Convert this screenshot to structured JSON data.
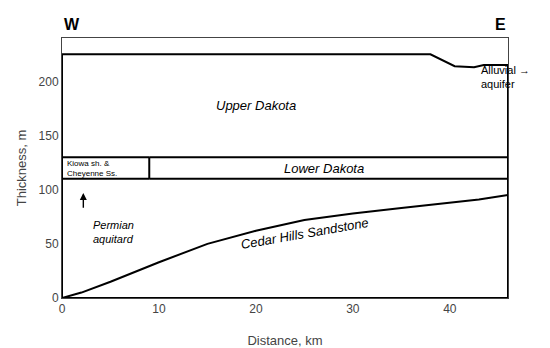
{
  "chart_data": {
    "type": "line",
    "xlabel": "Distance, km",
    "ylabel": "Thickness, m",
    "xlim": [
      0,
      46
    ],
    "ylim": [
      0,
      240
    ],
    "xticks": [
      0,
      10,
      20,
      30,
      40
    ],
    "yticks": [
      0,
      50,
      100,
      150,
      200
    ],
    "grid": false,
    "series": [
      {
        "color": "#000000",
        "x": [
          0,
          38,
          40.5,
          42.5,
          43.5,
          46
        ],
        "values": [
          225,
          225,
          214,
          213,
          215,
          215
        ]
      },
      {
        "color": "#000000",
        "x": [
          0,
          0
        ],
        "values": [
          0,
          225
        ]
      },
      {
        "color": "#000000",
        "x": [
          46,
          46
        ],
        "values": [
          0,
          215
        ]
      },
      {
        "color": "#000000",
        "x": [
          0,
          46
        ],
        "values": [
          0,
          0
        ]
      },
      {
        "color": "#000000",
        "x": [
          0,
          2,
          5,
          10,
          15,
          20,
          25,
          30,
          35,
          40,
          43,
          46
        ],
        "values": [
          0,
          5,
          15,
          33,
          50,
          62,
          72,
          78,
          83,
          88,
          91,
          95
        ]
      },
      {
        "color": "#000000",
        "x": [
          0,
          9.0
        ],
        "values": [
          130,
          130
        ]
      },
      {
        "color": "#000000",
        "x": [
          0,
          9.0
        ],
        "values": [
          110,
          110
        ]
      },
      {
        "color": "#000000",
        "x": [
          9.0,
          9.0
        ],
        "values": [
          110,
          130
        ]
      },
      {
        "color": "#000000",
        "x": [
          9.0,
          46
        ],
        "values": [
          130,
          130
        ]
      },
      {
        "color": "#000000",
        "x": [
          9.0,
          46
        ],
        "values": [
          110,
          110
        ]
      }
    ],
    "annotations": [
      "W",
      "E",
      "Upper Dakota",
      "Lower Dakota",
      "Cedar Hills Sandstone",
      "Permian\naquitard",
      "Kiowa sh. &\nCheyenne Ss.",
      "Alluvial →\naquifer"
    ]
  }
}
